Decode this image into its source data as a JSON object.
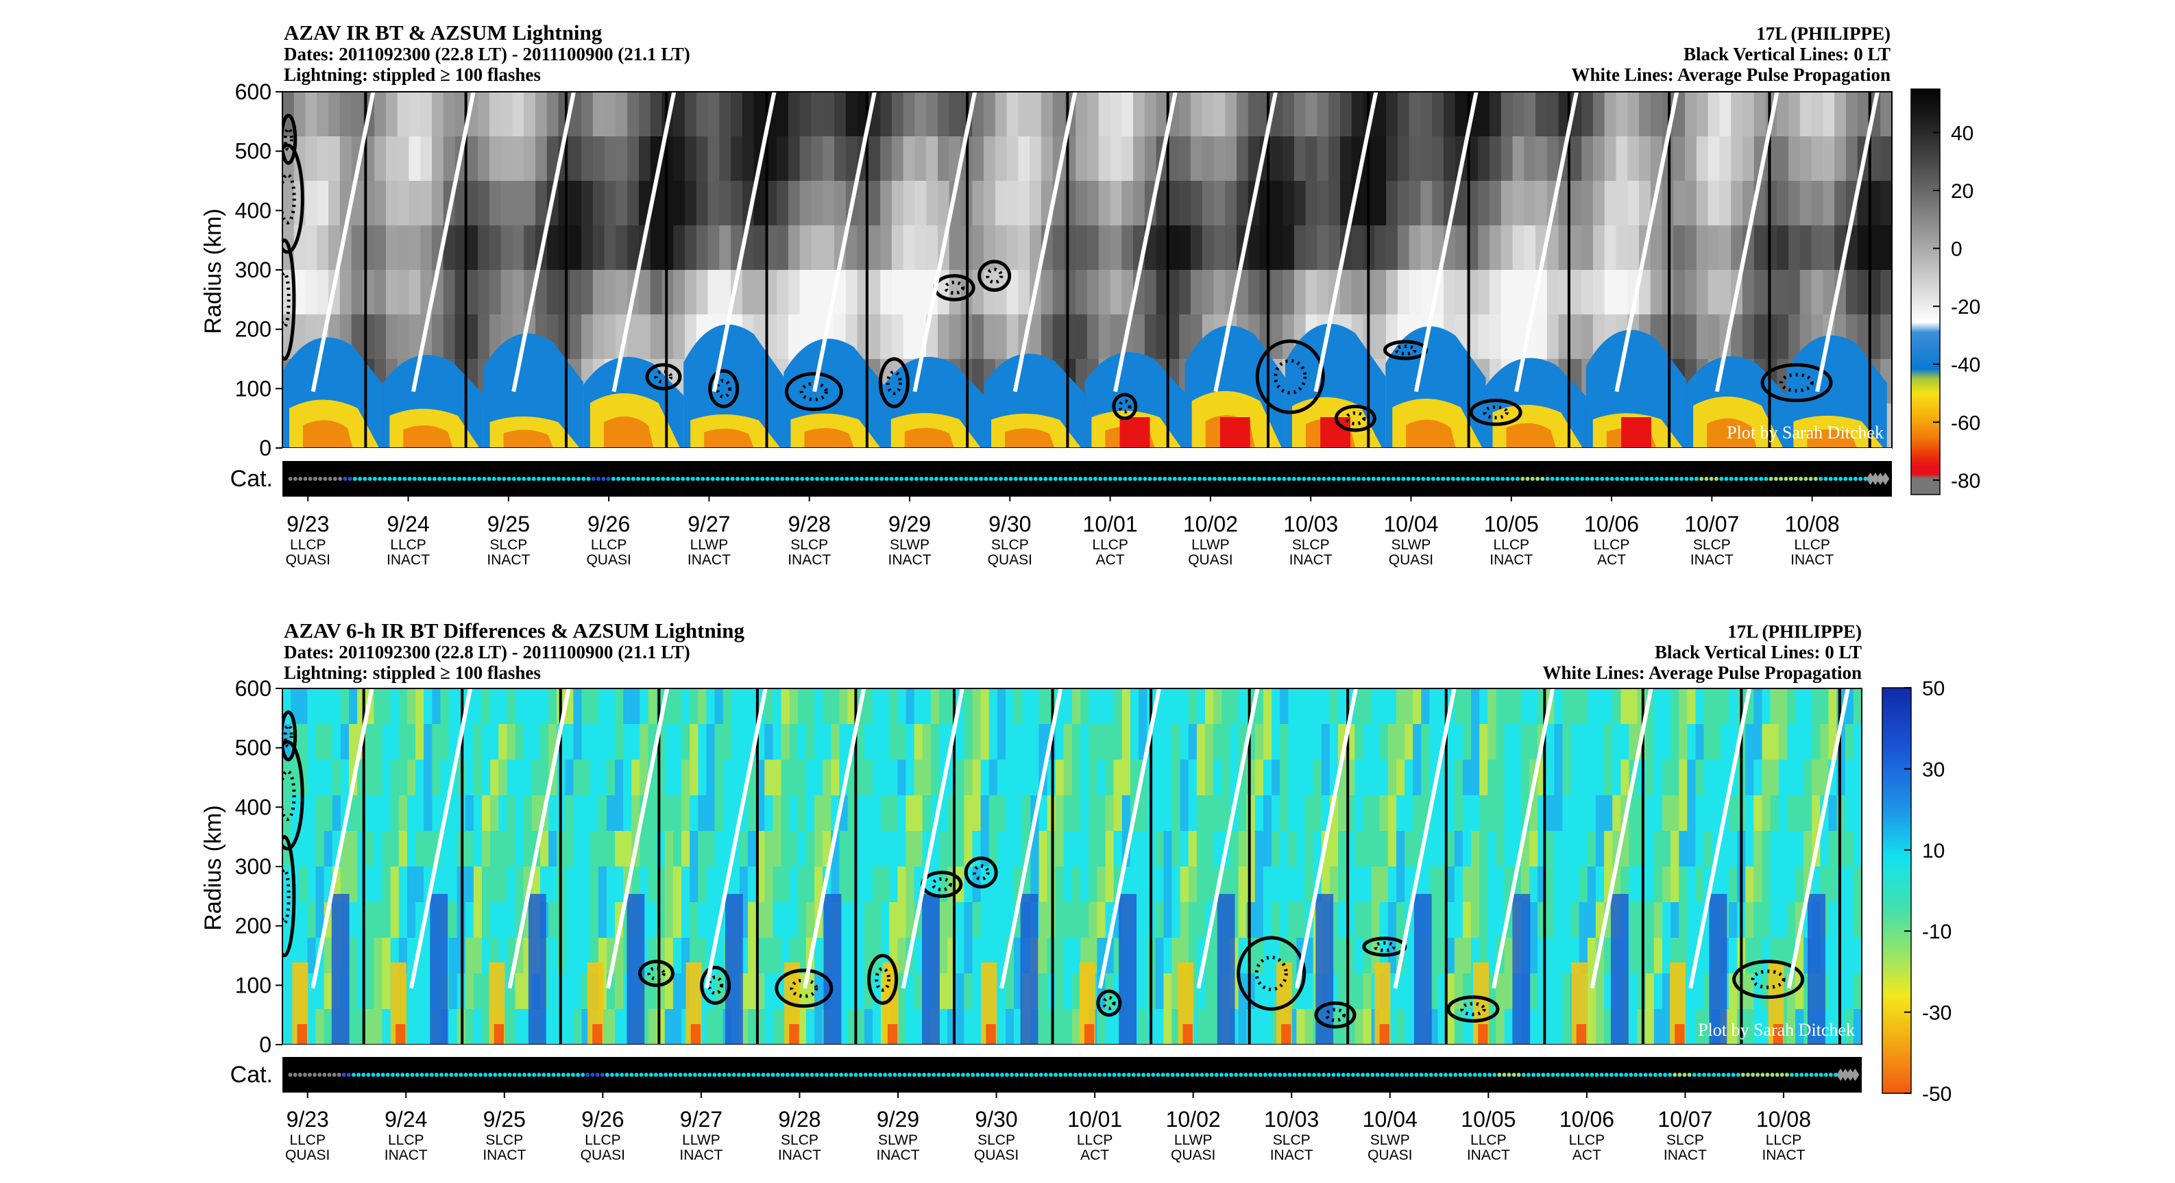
{
  "chart_data": [
    {
      "type": "heatmap",
      "title": "AZAV IR BT & AZSUM Lightning",
      "subtitle_dates": "Dates: 2011092300 (22.8 LT) - 2011100900 (21.1 LT)",
      "subtitle_lightning": "Lightning: stippled ≥ 100 flashes",
      "storm": "17L (PHILIPPE)",
      "note_black": "Black Vertical Lines: 0 LT",
      "note_white": "White Lines: Average Pulse Propagation",
      "ylabel": "Radius (km)",
      "ylim": [
        0,
        600
      ],
      "yticks": [
        "0",
        "100",
        "200",
        "300",
        "400",
        "500",
        "600"
      ],
      "cat_label": "Cat.",
      "credit": "Plot by Sarah Ditchek",
      "colorbar": {
        "ticks": [
          "40",
          "20",
          "0",
          "-20",
          "-40",
          "-60",
          "-80"
        ],
        "range": [
          55,
          -85
        ]
      }
    },
    {
      "type": "heatmap",
      "title": "AZAV 6-h IR BT Differences & AZSUM Lightning",
      "subtitle_dates": "Dates: 2011092300 (22.8 LT) - 2011100900 (21.1 LT)",
      "subtitle_lightning": "Lightning: stippled ≥ 100 flashes",
      "storm": "17L (PHILIPPE)",
      "note_black": "Black Vertical Lines: 0 LT",
      "note_white": "White Lines: Average Pulse Propagation",
      "ylabel": "Radius (km)",
      "ylim": [
        0,
        600
      ],
      "yticks": [
        "0",
        "100",
        "200",
        "300",
        "400",
        "500",
        "600"
      ],
      "cat_label": "Cat.",
      "credit": "Plot by Sarah Ditchek",
      "colorbar": {
        "ticks": [
          "50",
          "30",
          "10",
          "-10",
          "-30",
          "-50"
        ],
        "range": [
          50,
          -50
        ]
      }
    }
  ],
  "dates": [
    {
      "date": "9/23",
      "shear": "LLCP",
      "state": "QUASI"
    },
    {
      "date": "9/24",
      "shear": "LLCP",
      "state": "INACT"
    },
    {
      "date": "9/25",
      "shear": "SLCP",
      "state": "INACT"
    },
    {
      "date": "9/26",
      "shear": "LLCP",
      "state": "QUASI"
    },
    {
      "date": "9/27",
      "shear": "LLWP",
      "state": "INACT"
    },
    {
      "date": "9/28",
      "shear": "SLCP",
      "state": "INACT"
    },
    {
      "date": "9/29",
      "shear": "SLWP",
      "state": "INACT"
    },
    {
      "date": "9/30",
      "shear": "SLCP",
      "state": "QUASI"
    },
    {
      "date": "10/01",
      "shear": "LLCP",
      "state": "ACT"
    },
    {
      "date": "10/02",
      "shear": "LLWP",
      "state": "QUASI"
    },
    {
      "date": "10/03",
      "shear": "SLCP",
      "state": "INACT"
    },
    {
      "date": "10/04",
      "shear": "SLWP",
      "state": "QUASI"
    },
    {
      "date": "10/05",
      "shear": "LLCP",
      "state": "INACT"
    },
    {
      "date": "10/06",
      "shear": "LLCP",
      "state": "ACT"
    },
    {
      "date": "10/07",
      "shear": "SLCP",
      "state": "INACT"
    },
    {
      "date": "10/08",
      "shear": "LLCP",
      "state": "INACT"
    }
  ],
  "categories": {
    "colors": {
      "D": "#7f7f7f",
      "S": "#2a4fd6",
      "H1": "#00dcea",
      "H2": "#9ae07a",
      "R": "#9a9a9a"
    },
    "sequence": [
      "D",
      "D",
      "D",
      "D",
      "D",
      "D",
      "D",
      "D",
      "D",
      "D",
      "D",
      "S",
      "S",
      "H1",
      "H1",
      "H1",
      "H1",
      "H1",
      "H1",
      "H1",
      "H1",
      "H1",
      "H1",
      "H1",
      "H1",
      "H1",
      "H1",
      "H1",
      "H1",
      "H1",
      "H1",
      "H1",
      "H1",
      "H1",
      "H1",
      "H1",
      "H1",
      "H1",
      "H1",
      "H1",
      "H1",
      "H1",
      "H1",
      "H1",
      "H1",
      "H1",
      "H1",
      "H1",
      "H1",
      "H1",
      "H1",
      "H1",
      "H1",
      "H1",
      "H1",
      "H1",
      "H1",
      "H1",
      "H1",
      "H1",
      "H1",
      "S",
      "S",
      "S",
      "S",
      "H1",
      "H1",
      "H1",
      "H1",
      "H1",
      "H1",
      "H1",
      "H1",
      "H1",
      "H1",
      "H1",
      "H1",
      "H1",
      "H1",
      "H1",
      "H1",
      "H1",
      "H1",
      "H1",
      "H1",
      "H1",
      "H1",
      "H1",
      "H1",
      "H1",
      "H1",
      "H1",
      "H1",
      "H1",
      "H1",
      "H1",
      "H1",
      "H1",
      "H1",
      "H1",
      "H1",
      "H1",
      "H1",
      "H1",
      "H1",
      "H1",
      "H1",
      "H1",
      "H1",
      "H1",
      "H1",
      "H1",
      "H1",
      "H1",
      "H1",
      "H1",
      "H1",
      "H1",
      "H1",
      "H1",
      "H1",
      "H1",
      "H1",
      "H1",
      "H1",
      "H1",
      "H1",
      "H1",
      "H1",
      "H1",
      "H1",
      "H1",
      "H1",
      "H1",
      "H1",
      "H1",
      "H1",
      "H1",
      "H1",
      "H1",
      "H1",
      "H1",
      "H1",
      "H1",
      "H1",
      "H1",
      "H1",
      "H1",
      "H1",
      "H1",
      "H1",
      "H1",
      "H1",
      "H1",
      "H1",
      "H1",
      "H1",
      "H1",
      "H1",
      "H1",
      "H1",
      "H1",
      "H1",
      "H1",
      "H1",
      "H1",
      "H1",
      "H1",
      "H1",
      "H1",
      "H1",
      "H1",
      "H1",
      "H1",
      "H1",
      "H1",
      "H1",
      "H1",
      "H1",
      "H1",
      "H1",
      "H1",
      "H1",
      "H1",
      "H1",
      "H1",
      "H1",
      "H1",
      "H1",
      "H1",
      "H1",
      "H1",
      "H1",
      "H1",
      "H1",
      "H1",
      "H1",
      "H1",
      "H1",
      "H1",
      "H1",
      "H1",
      "H1",
      "H1",
      "H1",
      "H1",
      "H1",
      "H1",
      "H1",
      "H1",
      "H1",
      "H1",
      "H1",
      "H1",
      "H1",
      "H1",
      "H1",
      "H1",
      "H1",
      "H1",
      "H1",
      "H1",
      "H1",
      "H1",
      "H1",
      "H1",
      "H1",
      "H1",
      "H1",
      "H1",
      "H1",
      "H1",
      "H1",
      "H1",
      "H1",
      "H1",
      "H1",
      "H1",
      "H1",
      "H1",
      "H1",
      "H1",
      "H1",
      "H1",
      "H1",
      "H1",
      "H1",
      "H1",
      "H2",
      "H2",
      "H2",
      "H2",
      "H2",
      "H1",
      "H1",
      "H1",
      "H1",
      "H1",
      "H1",
      "H1",
      "H1",
      "H1",
      "H1",
      "H1",
      "H1",
      "H1",
      "H1",
      "H1",
      "H1",
      "H1",
      "H1",
      "H1",
      "H1",
      "H1",
      "H1",
      "H1",
      "H1",
      "H1",
      "H1",
      "H1",
      "H1",
      "H1",
      "H1",
      "H1",
      "H2",
      "H2",
      "H2",
      "H2",
      "H1",
      "H1",
      "H1",
      "H1",
      "H1",
      "H1",
      "H1",
      "H1",
      "H1",
      "H1",
      "H2",
      "H2",
      "H2",
      "H2",
      "H2",
      "H2",
      "H2",
      "H2",
      "H2",
      "H2",
      "H1",
      "H1",
      "H1",
      "H1",
      "H1",
      "H1",
      "H1",
      "H1",
      "H1",
      "H1",
      "R",
      "R",
      "R",
      "R"
    ]
  }
}
